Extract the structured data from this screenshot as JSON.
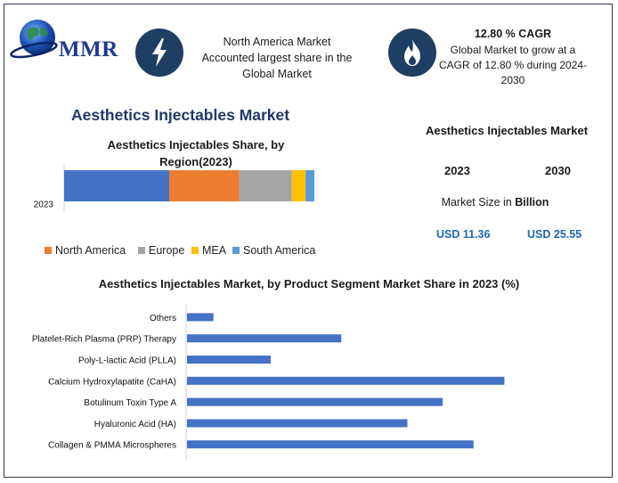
{
  "header": {
    "logo_text": "MMR",
    "callout_1": {
      "lines": [
        "North America Market",
        "Accounted largest share in the",
        "Global Market"
      ],
      "icon": "lightning-icon"
    },
    "callout_2": {
      "title": "12.80 % CAGR",
      "lines": [
        "Global Market to grow at a",
        "CAGR of 12.80 % during 2024-",
        "2030"
      ],
      "icon": "flame-icon"
    }
  },
  "main_title": "Aesthetics Injectables Market",
  "market_size": {
    "title": "Aesthetics Injectables Market",
    "year_1": "2023",
    "year_2": "2030",
    "label_prefix": "Market Size in ",
    "label_bold": "Billion",
    "value_1": "USD 11.36",
    "value_2": "USD 25.55"
  },
  "colors": {
    "north_america": "#ED7D31",
    "europe": "#A5A5A5",
    "mea": "#FFC000",
    "south_america": "#5B9BD5",
    "other_region": "#4472C4",
    "segment_bar": "#4472C4",
    "icon_circle": "#1f3e63"
  },
  "chart_data": [
    {
      "type": "bar",
      "orientation": "horizontal-stacked",
      "title_lines": [
        "Aesthetics Injectables Share, by",
        "Region(2023)"
      ],
      "categories": [
        "2023"
      ],
      "series": [
        {
          "key": "other",
          "values": [
            42
          ]
        },
        {
          "key": "north_america",
          "name": "North America",
          "values": [
            28
          ]
        },
        {
          "key": "europe",
          "name": "Europe",
          "values": [
            21
          ]
        },
        {
          "key": "mea",
          "name": "MEA",
          "values": [
            5.5
          ]
        },
        {
          "key": "south_america",
          "name": "South America",
          "values": [
            3.5
          ]
        }
      ],
      "xlim": [
        0,
        100
      ],
      "legend_position": "bottom",
      "grid": false
    },
    {
      "type": "bar",
      "orientation": "horizontal",
      "title": "Aesthetics Injectables Market, by Product Segment Market Share in 2023 (%)",
      "categories": [
        "Others",
        "Platelet-Rich Plasma (PRP) Therapy",
        "Poly-L-lactic Acid (PLLA)",
        "Calcium Hydroxylapatite (CaHA)",
        "Botulinum Toxin Type A",
        "Hyaluronic Acid (HA)",
        "Collagen & PMMA Microspheres"
      ],
      "values": [
        3,
        17.5,
        9.5,
        36,
        29,
        25,
        32.5
      ],
      "xlim": [
        0,
        40
      ],
      "grid": false,
      "legend": false
    }
  ]
}
